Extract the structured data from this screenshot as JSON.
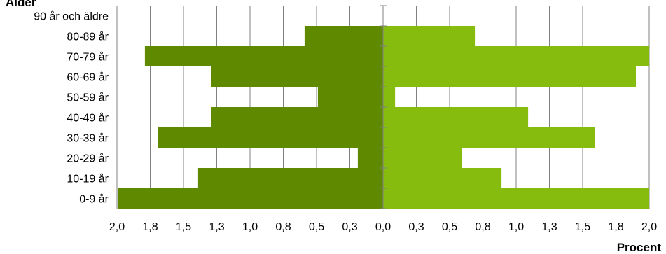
{
  "chart_data": {
    "type": "bar",
    "orientation": "horizontal",
    "layout": "population-pyramid",
    "ylabel": "Ålder",
    "xlabel": "Procent",
    "categories": [
      "0-9 år",
      "10-19 år",
      "20-29 år",
      "30-39 år",
      "40-49 år",
      "50-59 år",
      "60-69 år",
      "70-79 år",
      "80-89 år",
      "90 år och äldre"
    ],
    "series": [
      {
        "side": "left",
        "color": "#5f8a00",
        "values": [
          1.99,
          1.39,
          0.19,
          1.69,
          1.29,
          0.49,
          1.29,
          1.79,
          0.59,
          0.0
        ]
      },
      {
        "side": "right",
        "color": "#86bc0e",
        "values": [
          2.0,
          0.89,
          0.59,
          1.59,
          1.09,
          0.09,
          1.9,
          2.0,
          0.69,
          0.0
        ]
      }
    ],
    "xlim": [
      -2.0,
      2.0
    ],
    "x_ticks": [
      -2.0,
      -1.75,
      -1.5,
      -1.25,
      -1.0,
      -0.75,
      -0.5,
      -0.25,
      0.0,
      0.25,
      0.5,
      0.75,
      1.0,
      1.25,
      1.5,
      1.75,
      2.0
    ],
    "x_tick_labels": [
      "2,0",
      "1,8",
      "1,5",
      "1,3",
      "1,0",
      "0,8",
      "0,5",
      "0,3",
      "0,0",
      "0,3",
      "0,5",
      "0,8",
      "1,0",
      "1,3",
      "1,5",
      "1,8",
      "2,0"
    ],
    "grid": "vertical",
    "colors": {
      "grid": "#808080",
      "axis": "#808080"
    }
  }
}
